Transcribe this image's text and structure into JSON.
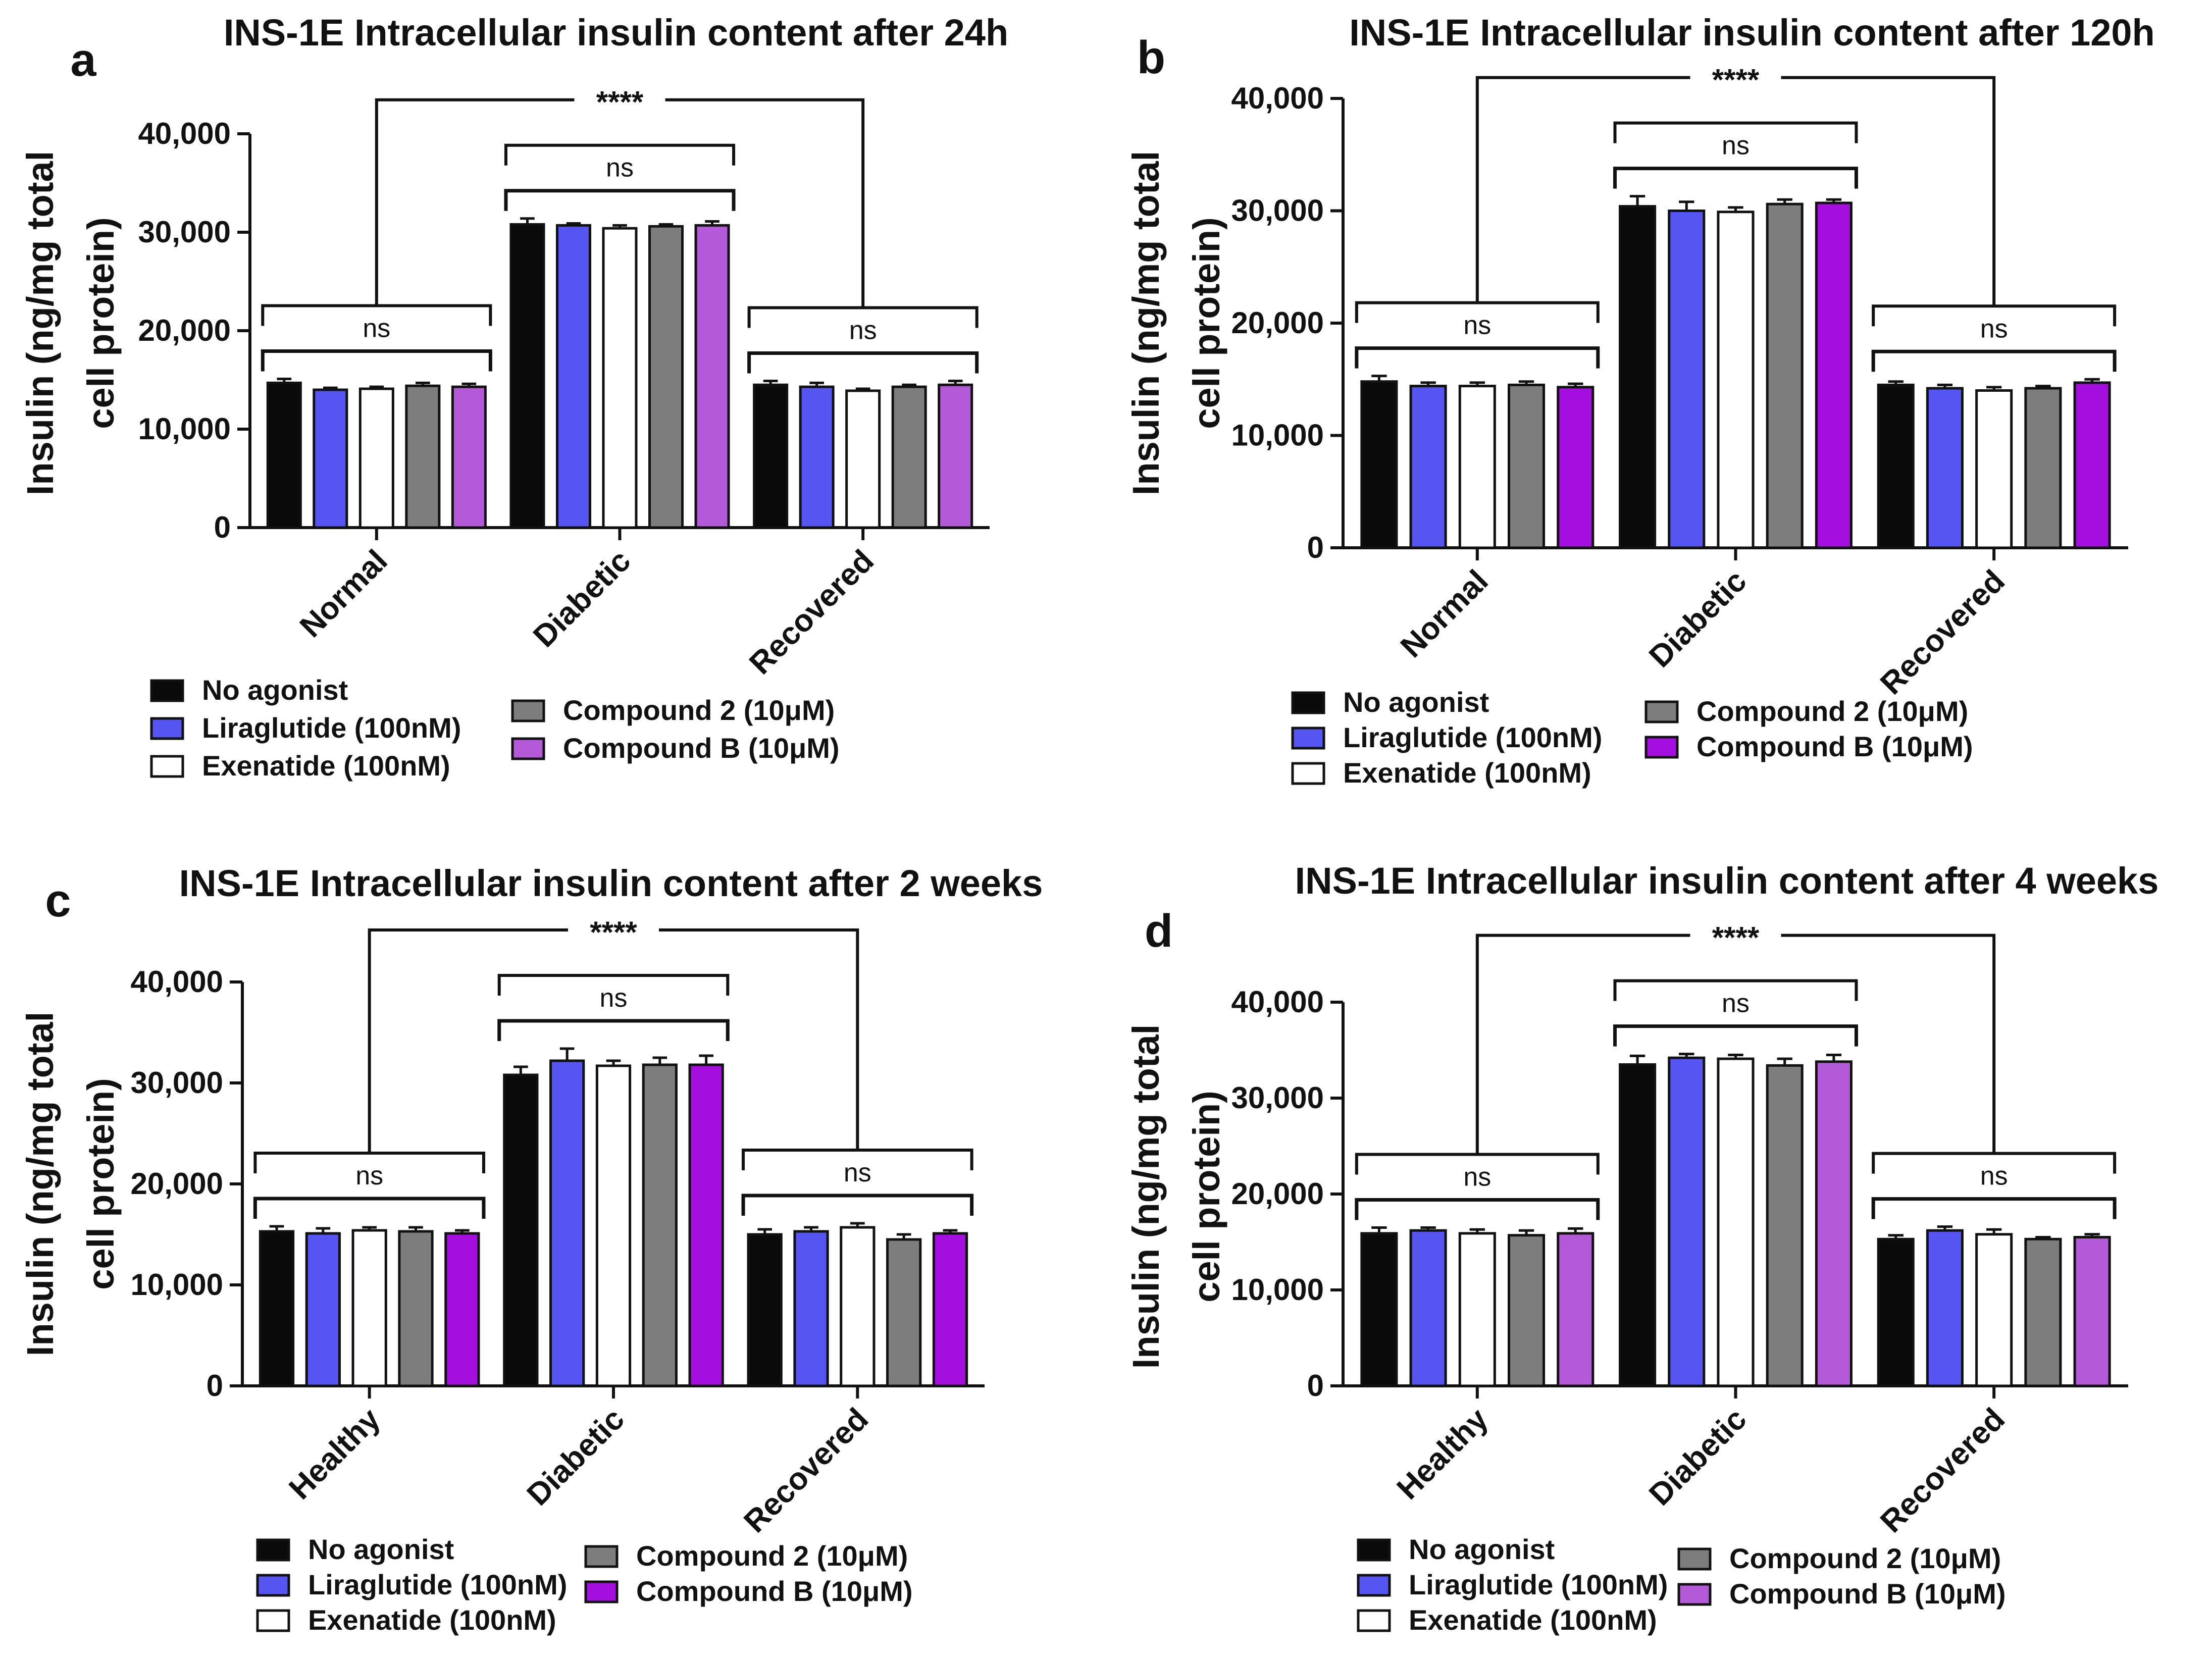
{
  "series_colors": [
    "#0a0a0a",
    "#5555f2",
    "#ffffff",
    "#7d7d7d",
    "#b45ad8"
  ],
  "series_colors_b": [
    "#0a0a0a",
    "#5555f2",
    "#ffffff",
    "#7d7d7d",
    "#a40fe0"
  ],
  "chart_data": [
    {
      "panel": "a",
      "type": "bar",
      "title": "INS-1E Intracellular insulin content after 24h",
      "xlabel": "",
      "ylabel": [
        "Insulin (ng/mg total",
        "cell protein)"
      ],
      "ylim": [
        0,
        40000
      ],
      "yticks": [
        "0",
        "10,000",
        "20,000",
        "30,000",
        "40,000"
      ],
      "categories": [
        "Normal",
        "Diabetic",
        "Recovered"
      ],
      "series": [
        {
          "name": "No agonist",
          "values": [
            14700,
            30800,
            14500
          ]
        },
        {
          "name": "Liraglutide (100nM)",
          "values": [
            14000,
            30700,
            14300
          ]
        },
        {
          "name": "Exenatide (100nM)",
          "values": [
            14100,
            30400,
            13900
          ]
        },
        {
          "name": "Compound 2 (10μM)",
          "values": [
            14400,
            30600,
            14300
          ]
        },
        {
          "name": "Compound B (10μM)",
          "values": [
            14300,
            30700,
            14500
          ]
        }
      ],
      "errors": [
        [
          400,
          600,
          400
        ],
        [
          200,
          200,
          400
        ],
        [
          200,
          300,
          200
        ],
        [
          300,
          200,
          200
        ],
        [
          300,
          400,
          400
        ]
      ],
      "annotations": {
        "group": [
          "ns",
          "ns",
          "ns"
        ],
        "between": "****"
      }
    },
    {
      "panel": "b",
      "type": "bar",
      "title": "INS-1E Intracellular insulin content after 120h",
      "xlabel": "",
      "ylabel": [
        "Insulin (ng/mg total",
        "cell protein)"
      ],
      "ylim": [
        0,
        40000
      ],
      "yticks": [
        "0",
        "10,000",
        "20,000",
        "30,000",
        "40,000"
      ],
      "categories": [
        "Normal",
        "Diabetic",
        "Recovered"
      ],
      "series": [
        {
          "name": "No agonist",
          "values": [
            14800,
            30400,
            14500
          ]
        },
        {
          "name": "Liraglutide (100nM)",
          "values": [
            14400,
            30000,
            14200
          ]
        },
        {
          "name": "Exenatide (100nM)",
          "values": [
            14400,
            29900,
            14000
          ]
        },
        {
          "name": "Compound 2 (10μM)",
          "values": [
            14500,
            30600,
            14200
          ]
        },
        {
          "name": "Compound B (10μM)",
          "values": [
            14300,
            30700,
            14700
          ]
        }
      ],
      "errors": [
        [
          500,
          900,
          300
        ],
        [
          300,
          800,
          300
        ],
        [
          300,
          400,
          300
        ],
        [
          300,
          400,
          200
        ],
        [
          300,
          300,
          300
        ]
      ],
      "annotations": {
        "group": [
          "ns",
          "ns",
          "ns"
        ],
        "between": "****"
      }
    },
    {
      "panel": "c",
      "type": "bar",
      "title": "INS-1E Intracellular insulin content after 2 weeks",
      "xlabel": "",
      "ylabel": [
        "Insulin (ng/mg total",
        "cell protein)"
      ],
      "ylim": [
        0,
        40000
      ],
      "yticks": [
        "0",
        "10,000",
        "20,000",
        "30,000",
        "40,000"
      ],
      "categories": [
        "Healthy",
        "Diabetic",
        "Recovered"
      ],
      "series": [
        {
          "name": "No agonist",
          "values": [
            15300,
            30800,
            15000
          ]
        },
        {
          "name": "Liraglutide (100nM)",
          "values": [
            15100,
            32200,
            15300
          ]
        },
        {
          "name": "Exenatide (100nM)",
          "values": [
            15400,
            31700,
            15700
          ]
        },
        {
          "name": "Compound 2 (10μM)",
          "values": [
            15300,
            31800,
            14500
          ]
        },
        {
          "name": "Compound B (10μM)",
          "values": [
            15100,
            31800,
            15100
          ]
        }
      ],
      "errors": [
        [
          500,
          800,
          500
        ],
        [
          500,
          1200,
          400
        ],
        [
          300,
          500,
          400
        ],
        [
          400,
          700,
          500
        ],
        [
          300,
          900,
          300
        ]
      ],
      "annotations": {
        "group": [
          "ns",
          "ns",
          "ns"
        ],
        "between": "****"
      }
    },
    {
      "panel": "d",
      "type": "bar",
      "title": "INS-1E Intracellular insulin content after 4 weeks",
      "xlabel": "",
      "ylabel": [
        "Insulin (ng/mg total",
        "cell protein)"
      ],
      "ylim": [
        0,
        40000
      ],
      "yticks": [
        "0",
        "10,000",
        "20,000",
        "30,000",
        "40,000"
      ],
      "categories": [
        "Healthy",
        "Diabetic",
        "Recovered"
      ],
      "series": [
        {
          "name": "No agonist",
          "values": [
            15900,
            33500,
            15300
          ]
        },
        {
          "name": "Liraglutide (100nM)",
          "values": [
            16200,
            34200,
            16200
          ]
        },
        {
          "name": "Exenatide (100nM)",
          "values": [
            15900,
            34100,
            15800
          ]
        },
        {
          "name": "Compound 2 (10μM)",
          "values": [
            15700,
            33400,
            15300
          ]
        },
        {
          "name": "Compound B (10μM)",
          "values": [
            15900,
            33800,
            15500
          ]
        }
      ],
      "errors": [
        [
          600,
          900,
          400
        ],
        [
          300,
          400,
          400
        ],
        [
          400,
          400,
          500
        ],
        [
          500,
          700,
          200
        ],
        [
          500,
          700,
          300
        ]
      ],
      "annotations": {
        "group": [
          "ns",
          "ns",
          "ns"
        ],
        "between": "****"
      }
    }
  ]
}
